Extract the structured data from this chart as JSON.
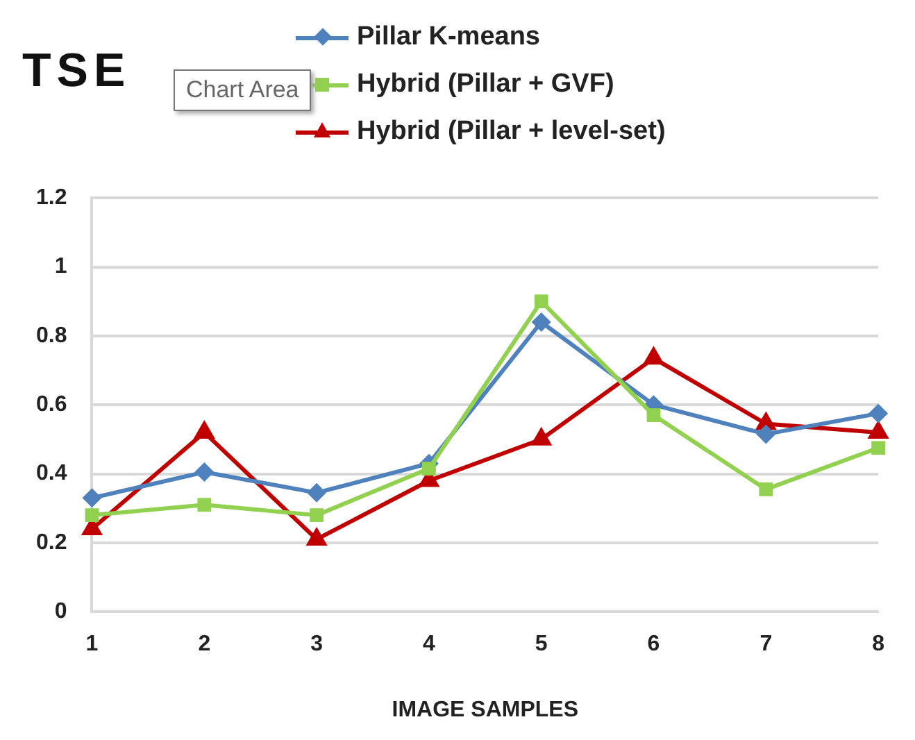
{
  "chart_data": {
    "type": "line",
    "title": "TSE",
    "xlabel": "IMAGE SAMPLES",
    "categories": [
      "1",
      "2",
      "3",
      "4",
      "5",
      "6",
      "7",
      "8"
    ],
    "series": [
      {
        "name": "Pillar K-means",
        "color": "#4f81bd",
        "marker": "diamond",
        "values": [
          0.33,
          0.405,
          0.345,
          0.43,
          0.84,
          0.6,
          0.515,
          0.575
        ]
      },
      {
        "name": "Hybrid (Pillar + GVF)",
        "color": "#92d050",
        "marker": "square",
        "values": [
          0.28,
          0.31,
          0.28,
          0.415,
          0.9,
          0.57,
          0.355,
          0.475
        ]
      },
      {
        "name": "Hybrid (Pillar + level-set)",
        "color": "#c00000",
        "marker": "triangle",
        "values": [
          0.24,
          0.52,
          0.21,
          0.38,
          0.5,
          0.735,
          0.545,
          0.52
        ]
      }
    ],
    "ylim": [
      0,
      1.2
    ],
    "yticks": [
      0,
      0.2,
      0.4,
      0.6,
      0.8,
      1,
      1.2
    ],
    "grid": "y",
    "legend": "top",
    "annotations": [
      "Chart Area"
    ]
  }
}
